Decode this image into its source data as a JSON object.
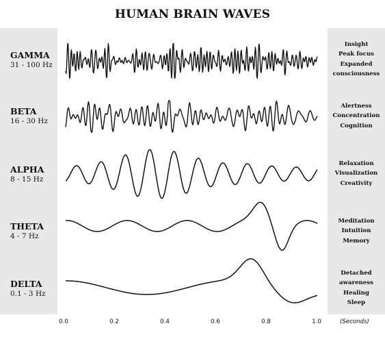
{
  "title": "HUMAN BRAIN WAVES",
  "waves": [
    {
      "name": "GAMMA",
      "range": "31 - 100 Hz",
      "states": [
        "Insight",
        "Peak focus",
        "Expanded",
        "consciousness"
      ]
    },
    {
      "name": "BETA",
      "range": "16 - 30 Hz",
      "states": [
        "Alertness",
        "Concentration",
        "Cognition"
      ]
    },
    {
      "name": "ALPHA",
      "range": "8 - 15 Hz",
      "states": [
        "Relaxation",
        "Visualization",
        "Creativity"
      ]
    },
    {
      "name": "THETA",
      "range": "4 - 7 Hz",
      "states": [
        "Meditation",
        "Intuition",
        "Memory"
      ]
    },
    {
      "name": "DELTA",
      "range": "0.1 - 3 Hz",
      "states": [
        "Detached",
        "awareness",
        "Healing",
        "Sleep"
      ]
    }
  ],
  "x_axis": {
    "ticks": [
      "0.0",
      "0.2",
      "0.4",
      "0.6",
      "0.8",
      "1.0"
    ],
    "unit": "(Seconds)"
  },
  "colors": {
    "side_panel": "#e8e8e8",
    "wave_stroke": "#111111"
  }
}
